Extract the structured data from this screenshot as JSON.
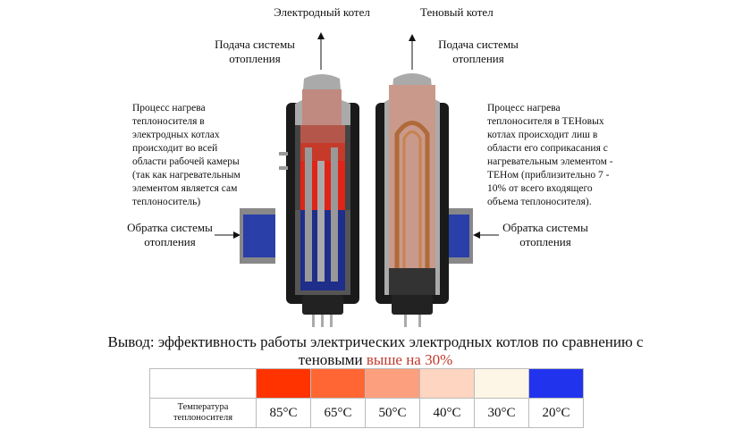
{
  "labels": {
    "electrode_title": "Электродный котел",
    "ten_title": "Теновый котел",
    "supply_left": "Подача системы отопления",
    "supply_right": "Подача системы отопления",
    "return_left": "Обратка системы отопления",
    "return_right": "Обратка системы отопления"
  },
  "descriptions": {
    "electrode": "Процесс нагрева теплоносителя в электродных котлах происходит во всей области рабочей камеры (так как нагревательным элементом является сам теплоноситель)",
    "ten": "Процесс нагрева теплоносителя в ТЕНовых котлах происходит лиш в области его соприкасания с нагревательным элементом - ТЕНом  (приблизительно 7 - 10% от всего входящего объема теплоносителя)."
  },
  "conclusion": {
    "text": "Вывод: эффективность работы электрических электродных котлов по сравнению с теновыми",
    "highlight": "выше на 30%",
    "highlight_color": "#c0392b"
  },
  "legend": {
    "row_label": "Температура теплоносителя",
    "items": [
      {
        "temp": "85°C",
        "color": "#ff3300"
      },
      {
        "temp": "65°C",
        "color": "#ff6633"
      },
      {
        "temp": "50°C",
        "color": "#fb9f7e"
      },
      {
        "temp": "40°C",
        "color": "#fdd5c0"
      },
      {
        "temp": "30°C",
        "color": "#fdf6e6"
      },
      {
        "temp": "20°C",
        "color": "#2233ee"
      }
    ]
  }
}
